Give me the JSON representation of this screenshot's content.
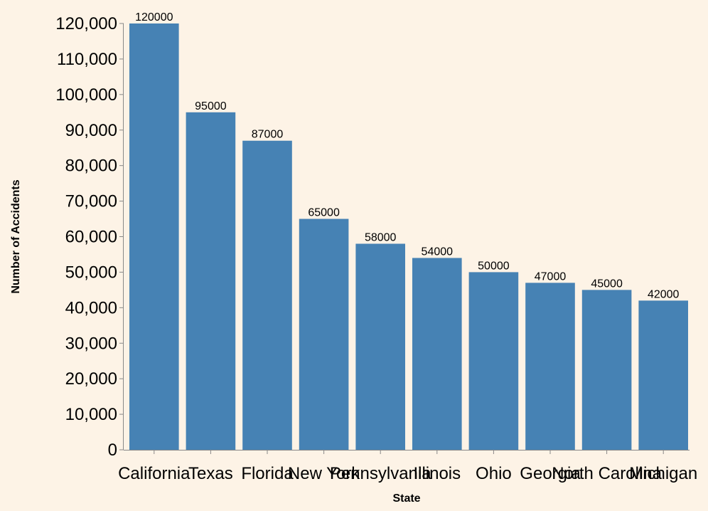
{
  "chart_data": {
    "type": "bar",
    "title": "",
    "xlabel": "State",
    "ylabel": "Number of Accidents",
    "categories": [
      "California",
      "Texas",
      "Florida",
      "New York",
      "Pennsylvania",
      "Illinois",
      "Ohio",
      "Georgia",
      "North Carolina",
      "Michigan"
    ],
    "values": [
      120000,
      95000,
      87000,
      65000,
      58000,
      54000,
      50000,
      47000,
      45000,
      42000
    ],
    "ylim": [
      0,
      120000
    ],
    "y_ticks": [
      0,
      10000,
      20000,
      30000,
      40000,
      50000,
      60000,
      70000,
      80000,
      90000,
      100000,
      110000,
      120000
    ],
    "y_tick_labels": [
      "0",
      "10,000",
      "20,000",
      "30,000",
      "40,000",
      "50,000",
      "60,000",
      "70,000",
      "80,000",
      "90,000",
      "100,000",
      "110,000",
      "120,000"
    ],
    "bar_color": "#4682b4",
    "background_color": "#fdf3e6",
    "grid": false,
    "data_labels": true
  }
}
